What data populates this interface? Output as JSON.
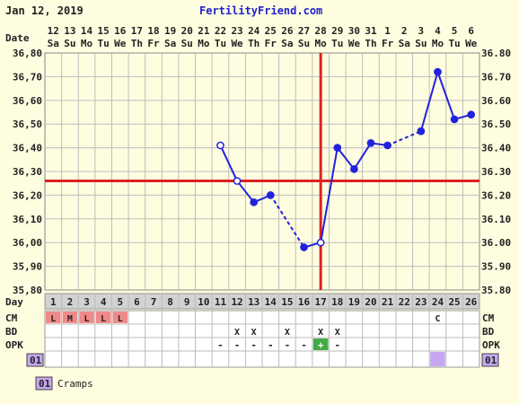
{
  "header": {
    "date": "Jan 12, 2019",
    "site": "FertilityFriend.com"
  },
  "colors": {
    "background": "#fefde0",
    "line": "#2222dd",
    "coverline": "#dd2222",
    "cm_fill": "#f08a8a",
    "positive_opk": "#44aa44",
    "cramps": "#c6a6f0",
    "grid": "#bdbdbd"
  },
  "labels": {
    "date": "Date",
    "day": "Day",
    "cm": "CM",
    "bd": "BD",
    "opk": "OPK",
    "custom_code": "01"
  },
  "legend": {
    "code": "01",
    "text": "Cramps"
  },
  "chart_data": {
    "type": "line",
    "ylim": [
      35.8,
      36.8
    ],
    "yticks": [
      "35,80",
      "35,90",
      "36,00",
      "36,10",
      "36,20",
      "36,30",
      "36,40",
      "36,50",
      "36,60",
      "36,70",
      "36,80"
    ],
    "yticks_right": [
      "35.80",
      "35.90",
      "36.00",
      "36.10",
      "36.20",
      "36.30",
      "36.40",
      "36.50",
      "36.60",
      "36.70",
      "36.80"
    ],
    "dates": [
      "12",
      "13",
      "14",
      "15",
      "16",
      "17",
      "18",
      "19",
      "20",
      "21",
      "22",
      "23",
      "24",
      "25",
      "26",
      "27",
      "28",
      "29",
      "30",
      "31",
      "1",
      "2",
      "3",
      "4",
      "5",
      "6"
    ],
    "weekdays": [
      "Sa",
      "Su",
      "Mo",
      "Tu",
      "We",
      "Th",
      "Fr",
      "Sa",
      "Su",
      "Mo",
      "Tu",
      "We",
      "Th",
      "Fr",
      "Sa",
      "Su",
      "Mo",
      "Tu",
      "We",
      "Th",
      "Fr",
      "Sa",
      "Su",
      "Mo",
      "Tu",
      "We"
    ],
    "cycle_days": [
      "1",
      "2",
      "3",
      "4",
      "5",
      "6",
      "7",
      "8",
      "9",
      "10",
      "11",
      "12",
      "13",
      "14",
      "15",
      "16",
      "17",
      "18",
      "19",
      "20",
      "21",
      "22",
      "23",
      "24",
      "25",
      "26"
    ],
    "temps": [
      null,
      null,
      null,
      null,
      null,
      null,
      null,
      null,
      null,
      null,
      36.41,
      36.26,
      36.17,
      36.2,
      null,
      35.98,
      36.0,
      36.4,
      36.31,
      36.42,
      36.41,
      null,
      36.47,
      36.72,
      36.52,
      36.54
    ],
    "open_points": [
      11,
      12,
      17
    ],
    "dashed_segments": [
      [
        14,
        16
      ],
      [
        21,
        23
      ]
    ],
    "coverline": 36.26,
    "ovulation_day": 17,
    "cm": [
      "L",
      "M",
      "L",
      "L",
      "L",
      "",
      "",
      "",
      "",
      "",
      "",
      "",
      "",
      "",
      "",
      "",
      "",
      "",
      "",
      "",
      "",
      "",
      "",
      "C",
      "",
      ""
    ],
    "cm_highlight": [
      1,
      2,
      3,
      4,
      5
    ],
    "bd": [
      "",
      "",
      "",
      "",
      "",
      "",
      "",
      "",
      "",
      "",
      "",
      "X",
      "X",
      "",
      "X",
      "",
      "X",
      "X",
      "",
      "",
      "",
      "",
      "",
      "",
      "",
      ""
    ],
    "opk": [
      "",
      "",
      "",
      "",
      "",
      "",
      "",
      "",
      "",
      "",
      "-",
      "-",
      "-",
      "-",
      "-",
      "-",
      "+",
      "-",
      "",
      "",
      "",
      "",
      "",
      "",
      "",
      ""
    ],
    "custom": [
      24
    ]
  }
}
